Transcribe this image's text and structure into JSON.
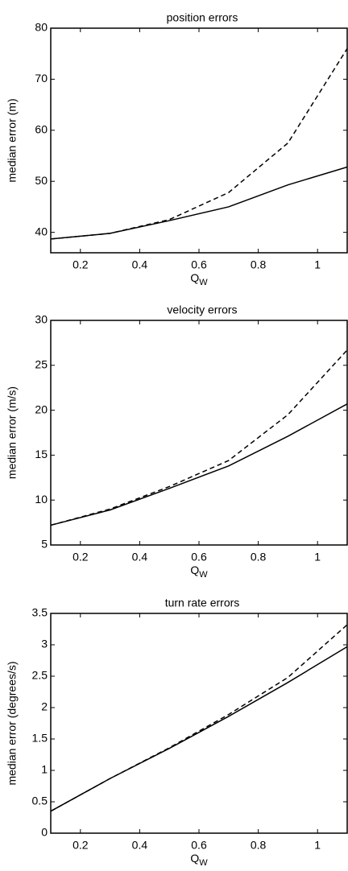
{
  "chart_data": [
    {
      "type": "line",
      "title": "position errors",
      "xlabel": "Q",
      "xlabel_subscript": "W",
      "ylabel": "median error (m)",
      "x": [
        0.1,
        0.3,
        0.5,
        0.7,
        0.9,
        1.1
      ],
      "xlim": [
        0.1,
        1.1
      ],
      "xticks": [
        0.2,
        0.4,
        0.6,
        0.8,
        1
      ],
      "ylim": [
        36,
        80
      ],
      "yticks": [
        40,
        50,
        60,
        70,
        80
      ],
      "series": [
        {
          "color": "#000000",
          "dashed": false,
          "values": [
            38.7,
            39.8,
            42.3,
            45,
            49.3,
            52.8
          ]
        },
        {
          "color": "#000000",
          "dashed": true,
          "values": [
            38.7,
            39.8,
            42.5,
            47.8,
            57.5,
            76
          ]
        }
      ]
    },
    {
      "type": "line",
      "title": "velocity errors",
      "xlabel": "Q",
      "xlabel_subscript": "W",
      "ylabel": "median error (m/s)",
      "x": [
        0.1,
        0.3,
        0.5,
        0.7,
        0.9,
        1.1
      ],
      "xlim": [
        0.1,
        1.1
      ],
      "xticks": [
        0.2,
        0.4,
        0.6,
        0.8,
        1
      ],
      "ylim": [
        5,
        30
      ],
      "yticks": [
        5,
        10,
        15,
        20,
        25,
        30
      ],
      "series": [
        {
          "color": "#000000",
          "dashed": false,
          "values": [
            7.2,
            8.9,
            11.3,
            13.8,
            17.1,
            20.7
          ]
        },
        {
          "color": "#000000",
          "dashed": true,
          "values": [
            7.2,
            9.0,
            11.5,
            14.4,
            19.5,
            26.7
          ]
        }
      ]
    },
    {
      "type": "line",
      "title": "turn rate errors",
      "xlabel": "Q",
      "xlabel_subscript": "W",
      "ylabel": "median error (degrees/s)",
      "x": [
        0.1,
        0.3,
        0.5,
        0.7,
        0.9,
        1.1
      ],
      "xlim": [
        0.1,
        1.1
      ],
      "xticks": [
        0.2,
        0.4,
        0.6,
        0.8,
        1
      ],
      "ylim": [
        0,
        3.5
      ],
      "yticks": [
        0,
        0.5,
        1,
        1.5,
        2,
        2.5,
        3,
        3.5
      ],
      "series": [
        {
          "color": "#000000",
          "dashed": false,
          "values": [
            0.35,
            0.87,
            1.35,
            1.86,
            2.4,
            2.97
          ]
        },
        {
          "color": "#000000",
          "dashed": true,
          "values": [
            0.35,
            0.87,
            1.36,
            1.89,
            2.48,
            3.32
          ]
        }
      ]
    }
  ]
}
